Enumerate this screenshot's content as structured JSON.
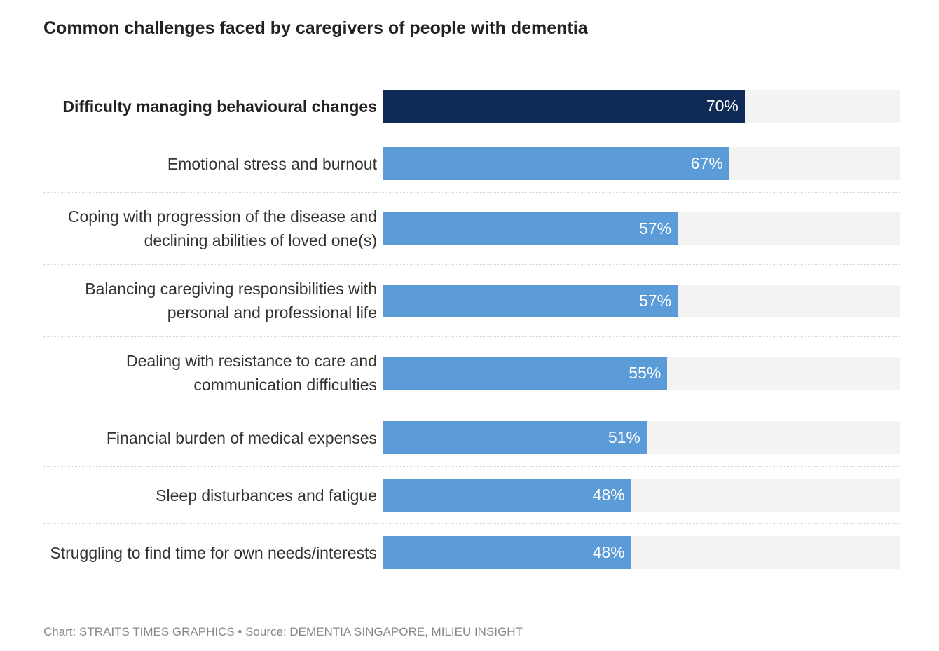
{
  "chart_data": {
    "type": "bar",
    "orientation": "horizontal",
    "title": "Common challenges faced by caregivers of people with dementia",
    "categories": [
      "Difficulty managing behavioural changes",
      "Emotional stress and burnout",
      "Coping with progression of the disease and declining abilities of loved one(s)",
      "Balancing caregiving responsibilities with personal and professional life",
      "Dealing with resistance to care and communication difficulties",
      "Financial burden of medical expenses",
      "Sleep disturbances and fatigue",
      "Struggling to find time for own needs/interests"
    ],
    "values": [
      70,
      67,
      57,
      57,
      55,
      51,
      48,
      48
    ],
    "value_labels": [
      "70%",
      "67%",
      "57%",
      "57%",
      "55%",
      "51%",
      "48%",
      "48%"
    ],
    "color": "#5b9bd8",
    "highlight_index": 0,
    "highlight_color": "#0f2a55",
    "track_color": "#f3f3f3",
    "xlim": [
      0,
      100
    ],
    "source": "Chart: STRAITS TIMES GRAPHICS • Source: DEMENTIA SINGAPORE, MILIEU INSIGHT"
  }
}
